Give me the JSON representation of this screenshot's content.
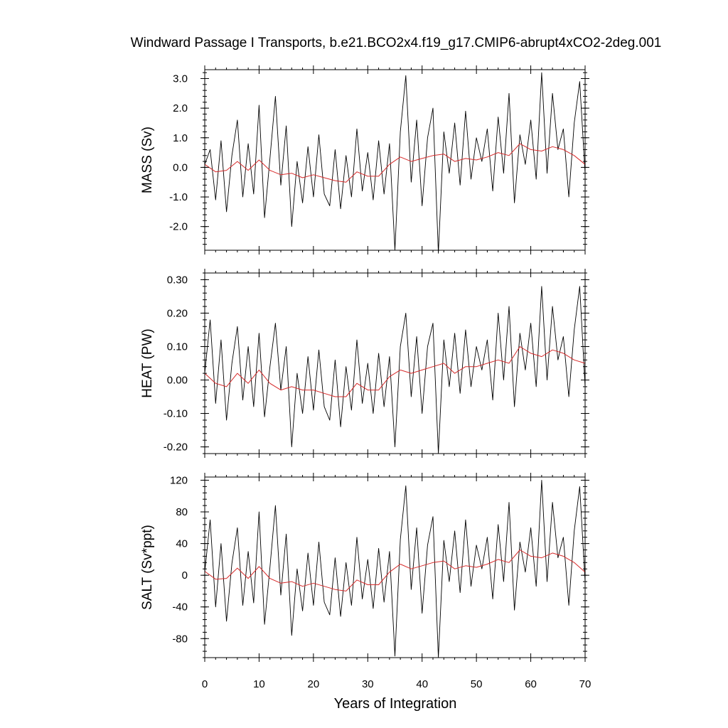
{
  "chart_data": {
    "type": "line",
    "title": "Windward Passage I Transports, b.e21.BCO2x4.f19_g17.CMIP6-abrupt4xCO2-2deg.001",
    "xlabel": "Years of Integration",
    "xlim": [
      0,
      70
    ],
    "xticks": [
      "0",
      "10",
      "20",
      "30",
      "40",
      "50",
      "60",
      "70"
    ],
    "panels": [
      {
        "ylabel": "MASS (Sv)",
        "ylim": [
          -2.8,
          3.3
        ],
        "yticks": [
          {
            "value": 3.0,
            "label": "3.0"
          },
          {
            "value": 2.0,
            "label": "2.0"
          },
          {
            "value": 1.0,
            "label": "1.0"
          },
          {
            "value": 0.0,
            "label": "0.0"
          },
          {
            "value": -1.0,
            "label": "-1.0"
          },
          {
            "value": -2.0,
            "label": "-2.0"
          }
        ],
        "series": [
          {
            "color": "#000000",
            "x": [
              0,
              1,
              2,
              3,
              4,
              5,
              6,
              7,
              8,
              9,
              10,
              11,
              12,
              13,
              14,
              15,
              16,
              17,
              18,
              19,
              20,
              21,
              22,
              23,
              24,
              25,
              26,
              27,
              28,
              29,
              30,
              31,
              32,
              33,
              34,
              35,
              36,
              37,
              38,
              39,
              40,
              41,
              42,
              43,
              44,
              45,
              46,
              47,
              48,
              49,
              50,
              51,
              52,
              53,
              54,
              55,
              56,
              57,
              58,
              59,
              60,
              61,
              62,
              63,
              64,
              65,
              66,
              67,
              68,
              69,
              70
            ],
            "y": [
              0.1,
              0.6,
              -1.1,
              0.9,
              -1.5,
              0.4,
              1.6,
              -1.0,
              0.8,
              -0.9,
              2.1,
              -1.7,
              0.3,
              2.4,
              -0.6,
              1.4,
              -2.0,
              0.2,
              -1.2,
              0.7,
              -1.0,
              1.1,
              -0.9,
              -1.3,
              0.6,
              -1.4,
              0.4,
              -1.0,
              1.3,
              -0.8,
              0.5,
              -1.1,
              0.9,
              -0.9,
              0.8,
              -2.8,
              1.2,
              3.1,
              -0.5,
              1.6,
              -1.3,
              1.0,
              2.0,
              -2.9,
              1.2,
              -0.2,
              1.5,
              -0.6,
              1.9,
              -0.4,
              1.0,
              0.2,
              1.3,
              -0.8,
              1.7,
              -0.2,
              2.5,
              -1.2,
              1.1,
              0.1,
              1.6,
              -0.4,
              3.2,
              -0.2,
              2.5,
              0.6,
              1.3,
              -1.0,
              1.5,
              2.9,
              -0.2
            ]
          },
          {
            "color": "#d62a2a",
            "x": [
              0,
              2,
              4,
              6,
              8,
              10,
              12,
              14,
              16,
              18,
              20,
              22,
              24,
              26,
              28,
              30,
              32,
              34,
              36,
              38,
              40,
              42,
              44,
              46,
              48,
              50,
              52,
              54,
              56,
              58,
              60,
              62,
              64,
              66,
              68,
              70
            ],
            "y": [
              0.1,
              -0.15,
              -0.1,
              0.2,
              -0.1,
              0.25,
              -0.1,
              -0.25,
              -0.2,
              -0.35,
              -0.25,
              -0.35,
              -0.45,
              -0.5,
              -0.15,
              -0.3,
              -0.3,
              0.1,
              0.35,
              0.2,
              0.3,
              0.4,
              0.45,
              0.2,
              0.3,
              0.25,
              0.35,
              0.5,
              0.4,
              0.8,
              0.6,
              0.55,
              0.7,
              0.6,
              0.4,
              0.1
            ]
          }
        ]
      },
      {
        "ylabel": "HEAT (PW)",
        "ylim": [
          -0.22,
          0.32
        ],
        "yticks": [
          {
            "value": 0.3,
            "label": "0.30"
          },
          {
            "value": 0.2,
            "label": "0.20"
          },
          {
            "value": 0.1,
            "label": "0.10"
          },
          {
            "value": 0.0,
            "label": "0.00"
          },
          {
            "value": -0.1,
            "label": "-0.10"
          },
          {
            "value": -0.2,
            "label": "-0.20"
          }
        ],
        "series": [
          {
            "color": "#000000",
            "x": [
              0,
              1,
              2,
              3,
              4,
              5,
              6,
              7,
              8,
              9,
              10,
              11,
              12,
              13,
              14,
              15,
              16,
              17,
              18,
              19,
              20,
              21,
              22,
              23,
              24,
              25,
              26,
              27,
              28,
              29,
              30,
              31,
              32,
              33,
              34,
              35,
              36,
              37,
              38,
              39,
              40,
              41,
              42,
              43,
              44,
              45,
              46,
              47,
              48,
              49,
              50,
              51,
              52,
              53,
              54,
              55,
              56,
              57,
              58,
              59,
              60,
              61,
              62,
              63,
              64,
              65,
              66,
              67,
              68,
              69,
              70
            ],
            "y": [
              0.02,
              0.18,
              -0.07,
              0.12,
              -0.12,
              0.05,
              0.16,
              -0.06,
              0.1,
              -0.08,
              0.14,
              -0.11,
              0.04,
              0.17,
              -0.03,
              0.1,
              -0.2,
              0.02,
              -0.1,
              0.07,
              -0.09,
              0.09,
              -0.08,
              -0.12,
              0.06,
              -0.14,
              0.04,
              -0.09,
              0.12,
              -0.07,
              0.05,
              -0.1,
              0.08,
              -0.08,
              0.07,
              -0.2,
              0.1,
              0.2,
              -0.05,
              0.13,
              -0.1,
              0.1,
              0.17,
              -0.22,
              0.12,
              -0.02,
              0.14,
              -0.04,
              0.15,
              -0.02,
              0.1,
              0.03,
              0.12,
              -0.06,
              0.2,
              0.0,
              0.22,
              -0.08,
              0.14,
              0.03,
              0.17,
              -0.02,
              0.28,
              0.0,
              0.22,
              0.06,
              0.13,
              -0.05,
              0.15,
              0.28,
              -0.02
            ]
          },
          {
            "color": "#d62a2a",
            "x": [
              0,
              2,
              4,
              6,
              8,
              10,
              12,
              14,
              16,
              18,
              20,
              22,
              24,
              26,
              28,
              30,
              32,
              34,
              36,
              38,
              40,
              42,
              44,
              46,
              48,
              50,
              52,
              54,
              56,
              58,
              60,
              62,
              64,
              66,
              68,
              70
            ],
            "y": [
              0.02,
              -0.01,
              -0.02,
              0.02,
              -0.01,
              0.03,
              -0.01,
              -0.03,
              -0.02,
              -0.03,
              -0.03,
              -0.04,
              -0.05,
              -0.05,
              -0.01,
              -0.03,
              -0.03,
              0.01,
              0.03,
              0.02,
              0.03,
              0.04,
              0.05,
              0.02,
              0.04,
              0.04,
              0.05,
              0.06,
              0.05,
              0.1,
              0.08,
              0.07,
              0.09,
              0.08,
              0.06,
              0.05
            ]
          }
        ]
      },
      {
        "ylabel": "SALT (Sv*ppt)",
        "ylim": [
          -104,
          124
        ],
        "yticks": [
          {
            "value": 120,
            "label": "120"
          },
          {
            "value": 80,
            "label": "80"
          },
          {
            "value": 40,
            "label": "40"
          },
          {
            "value": 0,
            "label": "0"
          },
          {
            "value": -40,
            "label": "-40"
          },
          {
            "value": -80,
            "label": "-80"
          }
        ],
        "series": [
          {
            "color": "#000000",
            "x": [
              0,
              1,
              2,
              3,
              4,
              5,
              6,
              7,
              8,
              9,
              10,
              11,
              12,
              13,
              14,
              15,
              16,
              17,
              18,
              19,
              20,
              21,
              22,
              23,
              24,
              25,
              26,
              27,
              28,
              29,
              30,
              31,
              32,
              33,
              34,
              35,
              36,
              37,
              38,
              39,
              40,
              41,
              42,
              43,
              44,
              45,
              46,
              47,
              48,
              49,
              50,
              51,
              52,
              53,
              54,
              55,
              56,
              57,
              58,
              59,
              60,
              61,
              62,
              63,
              64,
              65,
              66,
              67,
              68,
              69,
              70
            ],
            "y": [
              4,
              70,
              -40,
              40,
              -58,
              15,
              60,
              -38,
              30,
              -35,
              80,
              -62,
              10,
              88,
              -25,
              52,
              -76,
              8,
              -45,
              28,
              -38,
              42,
              -34,
              -50,
              22,
              -52,
              16,
              -38,
              48,
              -30,
              20,
              -42,
              34,
              -34,
              30,
              -102,
              45,
              113,
              -18,
              60,
              -48,
              38,
              74,
              -104,
              44,
              -8,
              56,
              -22,
              70,
              -14,
              38,
              8,
              48,
              -30,
              64,
              -8,
              92,
              -44,
              42,
              4,
              60,
              -14,
              120,
              -8,
              92,
              22,
              48,
              -38,
              56,
              112,
              -8
            ]
          },
          {
            "color": "#d62a2a",
            "x": [
              0,
              2,
              4,
              6,
              8,
              10,
              12,
              14,
              16,
              18,
              20,
              22,
              24,
              26,
              28,
              30,
              32,
              34,
              36,
              38,
              40,
              42,
              44,
              46,
              48,
              50,
              52,
              54,
              56,
              58,
              60,
              62,
              64,
              66,
              68,
              70
            ],
            "y": [
              5,
              -5,
              -4,
              9,
              -4,
              11,
              -4,
              -10,
              -8,
              -14,
              -10,
              -14,
              -18,
              -20,
              -6,
              -12,
              -12,
              4,
              14,
              8,
              12,
              16,
              18,
              8,
              12,
              10,
              14,
              20,
              16,
              32,
              24,
              22,
              28,
              24,
              16,
              4
            ]
          }
        ]
      }
    ]
  }
}
